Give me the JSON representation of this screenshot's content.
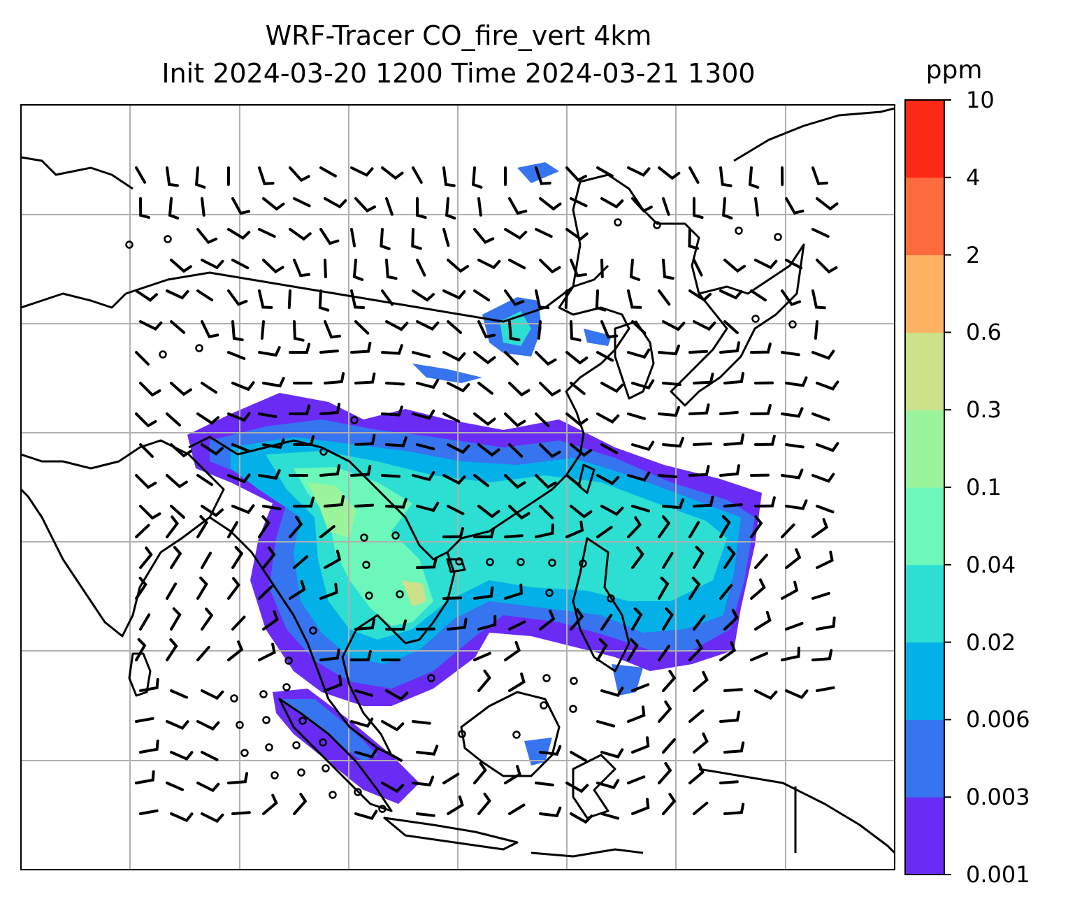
{
  "title": {
    "line1": "WRF-Tracer CO_fire_vert 4km",
    "line2": "Init 2024-03-20 1200 Time 2024-03-21 1300"
  },
  "colorbar": {
    "unit": "ppm",
    "levels": [
      "0.001",
      "0.003",
      "0.006",
      "0.02",
      "0.04",
      "0.1",
      "0.3",
      "0.6",
      "2",
      "4",
      "10"
    ],
    "colors": [
      "#6a2cf5",
      "#3674f0",
      "#03b1e8",
      "#2dded2",
      "#6cf7bb",
      "#9bf49c",
      "#cde08a",
      "#fdb163",
      "#fd6b3e",
      "#fb2a17"
    ]
  },
  "map": {
    "grid_color": "#b0b0b0",
    "coastline_color": "#000000",
    "features": [
      "coastlines",
      "country-borders",
      "lat-lon-grid",
      "wind-barbs",
      "calm-wind-circles",
      "co-tracer-shading"
    ]
  }
}
